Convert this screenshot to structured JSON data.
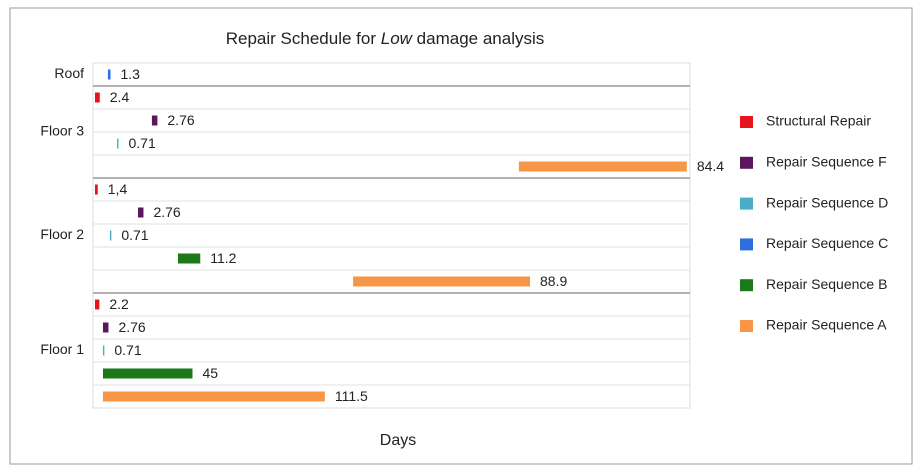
{
  "chart_data": {
    "type": "floating-bar",
    "title": {
      "before": "Repair Schedule for",
      "emphasis": "Low",
      "after": "damage analysis"
    },
    "xlabel": "Days",
    "xlim": [
      0,
      300
    ],
    "series": [
      {
        "name": "Structural Repair",
        "color": "#e8141c"
      },
      {
        "name": "Repair Sequence F",
        "color": "#5c1660"
      },
      {
        "name": "Repair Sequence D",
        "color": "#4bacc6"
      },
      {
        "name": "Repair Sequence C",
        "color": "#2e6fe0"
      },
      {
        "name": "Repair Sequence B",
        "color": "#1a7a1a"
      },
      {
        "name": "Repair Sequence A",
        "color": "#f79646"
      }
    ],
    "groups": [
      {
        "name": "Roof",
        "bars": [
          {
            "series": "Repair Sequence C",
            "start": 7.5,
            "value": 1.3
          }
        ]
      },
      {
        "name": "Floor 3",
        "bars": [
          {
            "series": "Structural Repair",
            "start": 1,
            "value": 2.4
          },
          {
            "series": "Repair Sequence F",
            "start": 29.6,
            "value": 2.76
          },
          {
            "series": "Repair Sequence D",
            "start": 12.1,
            "value": 0.71
          },
          {
            "series": "Repair Sequence A",
            "start": 214,
            "value": 84.4
          }
        ]
      },
      {
        "name": "Floor 2",
        "bars": [
          {
            "series": "Structural Repair",
            "start": 1,
            "value": 1.4,
            "value_label": "1,4"
          },
          {
            "series": "Repair Sequence F",
            "start": 22.6,
            "value": 2.76
          },
          {
            "series": "Repair Sequence D",
            "start": 8.5,
            "value": 0.71
          },
          {
            "series": "Repair Sequence B",
            "start": 42.7,
            "value": 11.2
          },
          {
            "series": "Repair Sequence A",
            "start": 130.7,
            "value": 88.9
          }
        ]
      },
      {
        "name": "Floor 1",
        "bars": [
          {
            "series": "Structural Repair",
            "start": 1,
            "value": 2.2
          },
          {
            "series": "Repair Sequence F",
            "start": 5,
            "value": 2.76
          },
          {
            "series": "Repair Sequence D",
            "start": 5,
            "value": 0.71
          },
          {
            "series": "Repair Sequence B",
            "start": 5,
            "value": 45
          },
          {
            "series": "Repair Sequence A",
            "start": 5,
            "value": 111.5
          }
        ]
      }
    ]
  }
}
